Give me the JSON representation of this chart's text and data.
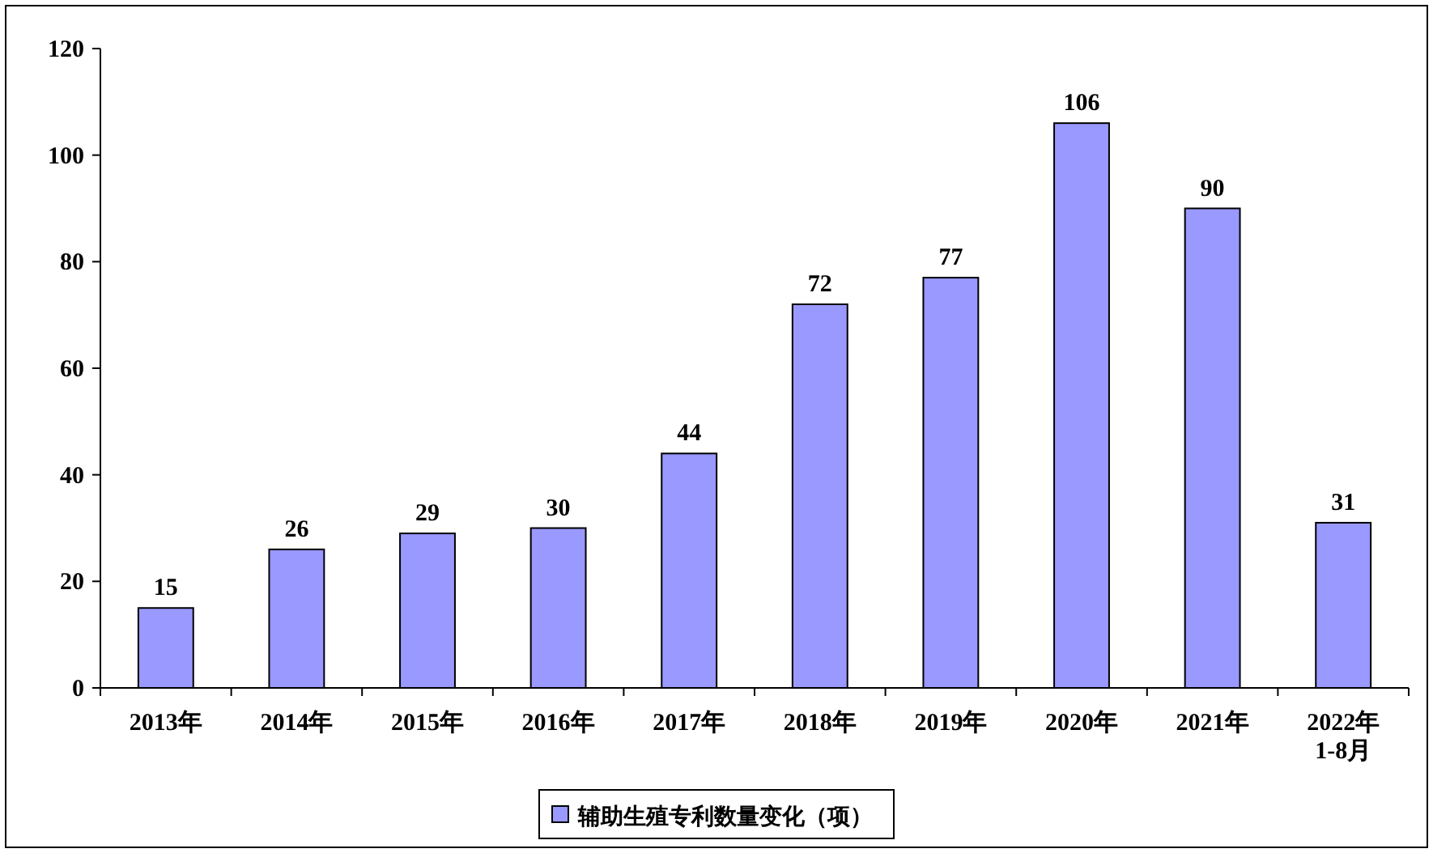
{
  "chart_data": {
    "type": "bar",
    "categories": [
      "2013年",
      "2014年",
      "2015年",
      "2016年",
      "2017年",
      "2018年",
      "2019年",
      "2020年",
      "2021年",
      "2022年\n1-8月"
    ],
    "series": [
      {
        "name": "辅助生殖专利数量变化（项）",
        "color": "#9999ff",
        "values": [
          15,
          26,
          29,
          30,
          44,
          72,
          77,
          106,
          90,
          31
        ]
      }
    ],
    "ylim": [
      0,
      120
    ],
    "yticks": [
      0,
      20,
      40,
      60,
      80,
      100,
      120
    ],
    "data_labels": true,
    "legend": "bottom",
    "grid": false
  }
}
